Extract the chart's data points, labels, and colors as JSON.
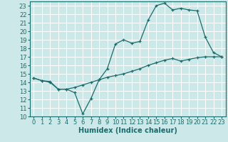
{
  "xlabel": "Humidex (Indice chaleur)",
  "xlim": [
    -0.5,
    23.5
  ],
  "ylim": [
    10,
    23.5
  ],
  "yticks": [
    10,
    11,
    12,
    13,
    14,
    15,
    16,
    17,
    18,
    19,
    20,
    21,
    22,
    23
  ],
  "xticks": [
    0,
    1,
    2,
    3,
    4,
    5,
    6,
    7,
    8,
    9,
    10,
    11,
    12,
    13,
    14,
    15,
    16,
    17,
    18,
    19,
    20,
    21,
    22,
    23
  ],
  "bg_color": "#cde8e8",
  "grid_color": "#b8d8d8",
  "line_color": "#1a6b6b",
  "line1_x": [
    0,
    1,
    2,
    3,
    4,
    5,
    6,
    7,
    8,
    9,
    10,
    11,
    12,
    13,
    14,
    15,
    16,
    17,
    18,
    19,
    20,
    21,
    22,
    23
  ],
  "line1_y": [
    14.5,
    14.2,
    14.1,
    13.2,
    13.2,
    12.8,
    10.3,
    12.1,
    14.3,
    15.6,
    18.5,
    19.0,
    18.6,
    18.8,
    21.3,
    23.0,
    23.3,
    22.5,
    22.7,
    22.5,
    22.4,
    19.3,
    17.5,
    17.0
  ],
  "line2_x": [
    0,
    1,
    2,
    3,
    4,
    5,
    6,
    7,
    8,
    9,
    10,
    11,
    12,
    13,
    14,
    15,
    16,
    17,
    18,
    19,
    20,
    21,
    22,
    23
  ],
  "line2_y": [
    14.5,
    14.2,
    14.0,
    13.2,
    13.2,
    13.4,
    13.7,
    14.0,
    14.3,
    14.6,
    14.8,
    15.0,
    15.3,
    15.6,
    16.0,
    16.3,
    16.6,
    16.8,
    16.5,
    16.7,
    16.9,
    17.0,
    17.0,
    17.0
  ],
  "font_size": 7,
  "tick_font_size": 6
}
